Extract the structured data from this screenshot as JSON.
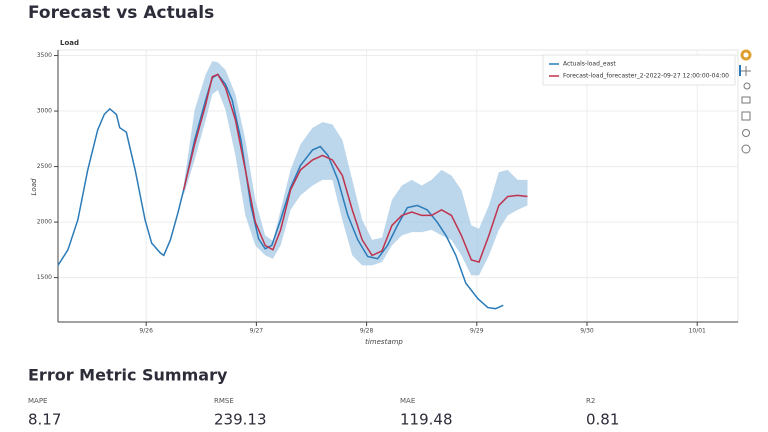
{
  "page_title": "Forecast vs Actuals",
  "chart_data": {
    "type": "line",
    "title": "Load",
    "xlabel": "timestamp",
    "ylabel": "Load",
    "xlim": [
      25.2,
      31.37
    ],
    "ylim": [
      1100,
      3550
    ],
    "xticks": [
      {
        "value": 26,
        "label": "9/26"
      },
      {
        "value": 27,
        "label": "9/27"
      },
      {
        "value": 28,
        "label": "9/28"
      },
      {
        "value": 29,
        "label": "9/29"
      },
      {
        "value": 30,
        "label": "9/30"
      },
      {
        "value": 31,
        "label": "10/01"
      }
    ],
    "yticks": [
      1500,
      2000,
      2500,
      3000,
      3500
    ],
    "grid": true,
    "legend": "top-right",
    "series": [
      {
        "name": "Actuals-load_east",
        "color": "#2b7bb9",
        "x": [
          25.2,
          25.29,
          25.38,
          25.47,
          25.56,
          25.62,
          25.67,
          25.73,
          25.76,
          25.82,
          25.9,
          25.99,
          26.05,
          26.13,
          26.16,
          26.22,
          26.29,
          26.35,
          26.44,
          26.54,
          26.6,
          26.65,
          26.72,
          26.78,
          26.86,
          26.95,
          27.02,
          27.08,
          27.14,
          27.22,
          27.31,
          27.4,
          27.51,
          27.58,
          27.65,
          27.74,
          27.83,
          27.92,
          28.01,
          28.1,
          28.19,
          28.28,
          28.37,
          28.46,
          28.55,
          28.64,
          28.72,
          28.81,
          28.9,
          29.01,
          29.1,
          29.17,
          29.24
        ],
        "values": [
          1610,
          1750,
          2020,
          2470,
          2830,
          2970,
          3020,
          2970,
          2850,
          2810,
          2470,
          2020,
          1810,
          1720,
          1700,
          1840,
          2090,
          2330,
          2740,
          3100,
          3300,
          3330,
          3240,
          3100,
          2740,
          2150,
          1850,
          1760,
          1790,
          2020,
          2310,
          2510,
          2650,
          2680,
          2600,
          2380,
          2060,
          1840,
          1690,
          1670,
          1790,
          1970,
          2130,
          2150,
          2110,
          2000,
          1880,
          1700,
          1450,
          1310,
          1230,
          1220,
          1250
        ]
      },
      {
        "name": "Forecast-load_forecaster_2-2022-09-27 12:00:00-04:00",
        "color": "#c0334d",
        "x": [
          26.34,
          26.44,
          26.54,
          26.6,
          26.65,
          26.72,
          26.81,
          26.9,
          26.99,
          27.08,
          27.15,
          27.22,
          27.31,
          27.4,
          27.51,
          27.6,
          27.69,
          27.78,
          27.87,
          27.96,
          28.05,
          28.14,
          28.23,
          28.32,
          28.41,
          28.5,
          28.59,
          28.68,
          28.77,
          28.86,
          28.95,
          29.02,
          29.11,
          29.2,
          29.28,
          29.37,
          29.46
        ],
        "values": [
          2290,
          2700,
          3060,
          3310,
          3330,
          3210,
          2920,
          2470,
          2000,
          1790,
          1750,
          1930,
          2290,
          2470,
          2560,
          2600,
          2560,
          2420,
          2110,
          1840,
          1700,
          1740,
          1970,
          2060,
          2090,
          2060,
          2060,
          2110,
          2060,
          1880,
          1660,
          1640,
          1880,
          2150,
          2230,
          2240,
          2230
        ]
      }
    ],
    "band": {
      "color": "#a6c8e4",
      "upper": [
        2330,
        3010,
        3330,
        3450,
        3440,
        3370,
        3150,
        2740,
        2200,
        1880,
        1830,
        2110,
        2470,
        2700,
        2850,
        2900,
        2880,
        2740,
        2380,
        2020,
        1840,
        1860,
        2200,
        2330,
        2380,
        2330,
        2380,
        2470,
        2420,
        2290,
        1970,
        1940,
        2150,
        2450,
        2470,
        2380,
        2380
      ],
      "lower": [
        2240,
        2560,
        2920,
        3150,
        3190,
        3010,
        2600,
        2060,
        1790,
        1700,
        1670,
        1790,
        2110,
        2240,
        2330,
        2380,
        2380,
        2020,
        1700,
        1610,
        1610,
        1640,
        1790,
        1880,
        1910,
        1910,
        1930,
        1880,
        1840,
        1700,
        1520,
        1520,
        1700,
        1930,
        2060,
        2110,
        2150
      ]
    }
  },
  "metrics_title": "Error Metric Summary",
  "metrics": [
    {
      "label": "MAPE",
      "value": 8.17
    },
    {
      "label": "RMSE",
      "value": 239.13
    },
    {
      "label": "MAE",
      "value": 119.48
    },
    {
      "label": "R2",
      "value": 0.81
    }
  ]
}
